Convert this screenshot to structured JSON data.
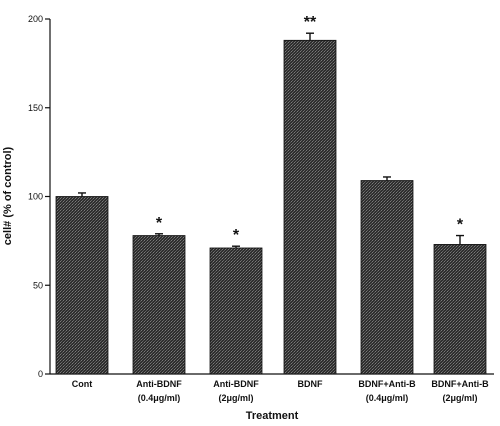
{
  "chart_data": {
    "type": "bar",
    "xlabel": "Treatment",
    "ylabel": "cell# (% of control)",
    "ylim": [
      0,
      200
    ],
    "yticks": [
      0,
      50,
      100,
      150,
      200
    ],
    "bar_color": "#2b2b2b",
    "categories": [
      {
        "line1": "Cont",
        "line2": ""
      },
      {
        "line1": "Anti-BDNF",
        "line2": "(0.4μg/ml)"
      },
      {
        "line1": "Anti-BDNF",
        "line2": "(2μg/ml)"
      },
      {
        "line1": "BDNF",
        "line2": ""
      },
      {
        "line1": "BDNF+Anti-B",
        "line2": "(0.4μg/ml)"
      },
      {
        "line1": "BDNF+Anti-B",
        "line2": "(2μg/ml)"
      }
    ],
    "values": [
      100,
      78,
      71,
      188,
      109,
      73
    ],
    "errors": [
      2,
      1,
      1,
      4,
      2,
      5
    ],
    "significance": [
      "",
      "*",
      "*",
      "**",
      "",
      "*"
    ]
  }
}
